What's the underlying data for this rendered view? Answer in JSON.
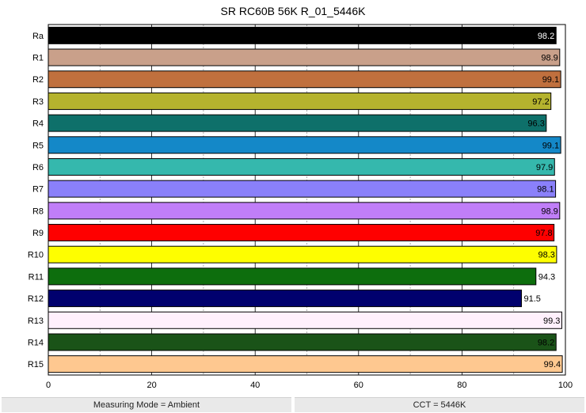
{
  "chart_data": {
    "type": "bar",
    "orientation": "horizontal",
    "title": "SR RC60B 56K R_01_5446K",
    "categories": [
      "Ra",
      "R1",
      "R2",
      "R3",
      "R4",
      "R5",
      "R6",
      "R7",
      "R8",
      "R9",
      "R10",
      "R11",
      "R12",
      "R13",
      "R14",
      "R15"
    ],
    "values": [
      98.2,
      98.9,
      99.1,
      97.2,
      96.3,
      99.1,
      97.9,
      98.1,
      98.9,
      97.8,
      98.3,
      94.3,
      91.5,
      99.3,
      98.2,
      99.4
    ],
    "value_labels": [
      "98.2",
      "98.9",
      "99.1",
      "97.2",
      "96.3",
      "99.1",
      "97.9",
      "98.1",
      "98.9",
      "97.8",
      "98.3",
      "94.3",
      "91.5",
      "99.3",
      "98.2",
      "99.4"
    ],
    "colors": [
      "#000000",
      "#c9a08a",
      "#c0703e",
      "#b5b32e",
      "#0e706a",
      "#1488c8",
      "#35b8ad",
      "#8a80fa",
      "#c07ef8",
      "#fe0000",
      "#fefe00",
      "#0d6e0d",
      "#00006e",
      "#fff0fc",
      "#1a5318",
      "#fec890"
    ],
    "label_inside_colors": [
      "#ffffff",
      "#000000",
      "#000000",
      "#000000",
      "#000000",
      "#000000",
      "#000000",
      "#000000",
      "#000000",
      "#000000",
      "#000000",
      "#000000",
      "#000000",
      "#000000",
      "#000000",
      "#000000"
    ],
    "xlim": [
      0,
      100
    ],
    "xticks": [
      0,
      20,
      40,
      60,
      80,
      100
    ],
    "xtick_labels": [
      "0",
      "20",
      "40",
      "60",
      "80",
      "100"
    ],
    "grid": true,
    "xlabel": "",
    "ylabel": ""
  },
  "footer": {
    "left": "Measuring Mode = Ambient",
    "right": "CCT = 5446K"
  }
}
